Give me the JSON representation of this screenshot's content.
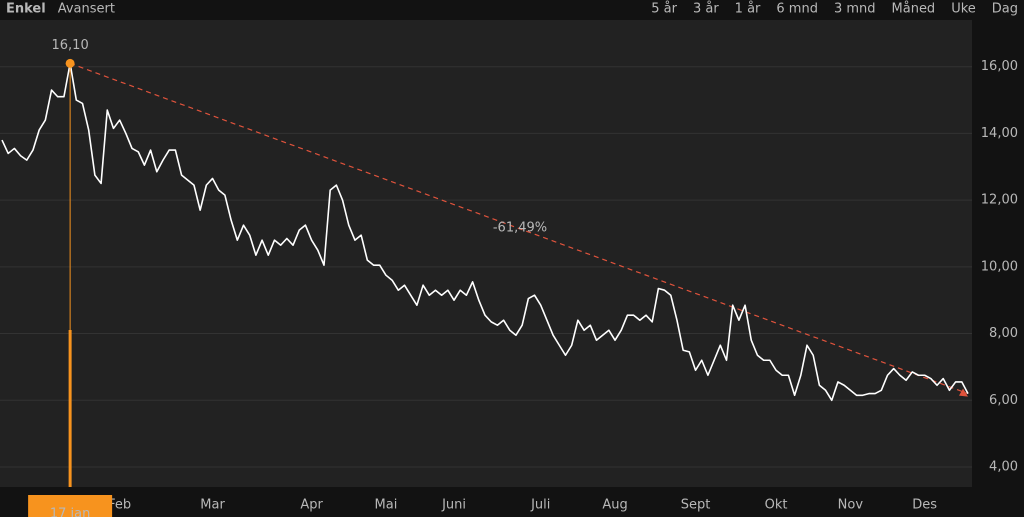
{
  "tabs": {
    "modes": [
      "Enkel",
      "Avansert"
    ],
    "active_mode": 0,
    "ranges": [
      "5 år",
      "3 år",
      "1 år",
      "6 mnd",
      "3 mnd",
      "Måned",
      "Uke",
      "Dag"
    ],
    "active_range": 2
  },
  "chart_data": {
    "type": "line",
    "color": "#ffffff",
    "values": [
      13.8,
      13.4,
      13.55,
      13.33,
      13.2,
      13.5,
      14.1,
      14.4,
      15.3,
      15.1,
      15.1,
      16.1,
      15.0,
      14.9,
      14.1,
      12.75,
      12.5,
      14.7,
      14.15,
      14.4,
      14.0,
      13.55,
      13.45,
      13.05,
      13.5,
      12.85,
      13.2,
      13.5,
      13.5,
      12.75,
      12.6,
      12.45,
      11.7,
      12.45,
      12.65,
      12.3,
      12.15,
      11.4,
      10.8,
      11.25,
      10.95,
      10.35,
      10.8,
      10.35,
      10.8,
      10.65,
      10.85,
      10.65,
      11.1,
      11.25,
      10.8,
      10.5,
      10.05,
      12.3,
      12.45,
      12.0,
      11.25,
      10.8,
      10.95,
      10.2,
      10.05,
      10.05,
      9.75,
      9.6,
      9.3,
      9.45,
      9.15,
      8.85,
      9.45,
      9.15,
      9.3,
      9.15,
      9.3,
      9.0,
      9.3,
      9.15,
      9.55,
      9.0,
      8.55,
      8.35,
      8.25,
      8.4,
      8.1,
      7.95,
      8.25,
      9.05,
      9.15,
      8.85,
      8.4,
      7.95,
      7.65,
      7.35,
      7.65,
      8.4,
      8.1,
      8.25,
      7.8,
      7.95,
      8.1,
      7.8,
      8.1,
      8.55,
      8.55,
      8.4,
      8.55,
      8.35,
      9.35,
      9.3,
      9.15,
      8.4,
      7.5,
      7.45,
      6.9,
      7.2,
      6.75,
      7.2,
      7.65,
      7.2,
      8.85,
      8.4,
      8.85,
      7.8,
      7.35,
      7.2,
      7.2,
      6.9,
      6.75,
      6.75,
      6.15,
      6.75,
      7.65,
      7.35,
      6.45,
      6.3,
      6.0,
      6.55,
      6.45,
      6.3,
      6.15,
      6.15,
      6.2,
      6.2,
      6.3,
      6.75,
      6.95,
      6.75,
      6.6,
      6.85,
      6.75,
      6.75,
      6.65,
      6.45,
      6.65,
      6.3,
      6.55,
      6.55,
      6.2
    ],
    "xlim": [
      0,
      156
    ],
    "xticks": [
      {
        "value": 19,
        "label": "Feb"
      },
      {
        "value": 34,
        "label": "Mar"
      },
      {
        "value": 50,
        "label": "Apr"
      },
      {
        "value": 62,
        "label": "Mai"
      },
      {
        "value": 73,
        "label": "Juni"
      },
      {
        "value": 87,
        "label": "Juli"
      },
      {
        "value": 99,
        "label": "Aug"
      },
      {
        "value": 112,
        "label": "Sept"
      },
      {
        "value": 125,
        "label": "Okt"
      },
      {
        "value": 137,
        "label": "Nov"
      },
      {
        "value": 149,
        "label": "Des"
      }
    ],
    "ylim": [
      3.4,
      18
    ],
    "yticks": [
      {
        "value": 4,
        "label": "4,00"
      },
      {
        "value": 6,
        "label": "6,00"
      },
      {
        "value": 8,
        "label": "8,00"
      },
      {
        "value": 10,
        "label": "10,00"
      },
      {
        "value": 12,
        "label": "12,00"
      },
      {
        "value": 14,
        "label": "14,00"
      },
      {
        "value": 16,
        "label": "16,00"
      }
    ],
    "grid": true,
    "peak": {
      "index": 11,
      "label": "16,10",
      "date_label": "17 jan",
      "color": "#f7931e"
    },
    "change_label": "-61,49%",
    "change_color": "#e0533c"
  }
}
